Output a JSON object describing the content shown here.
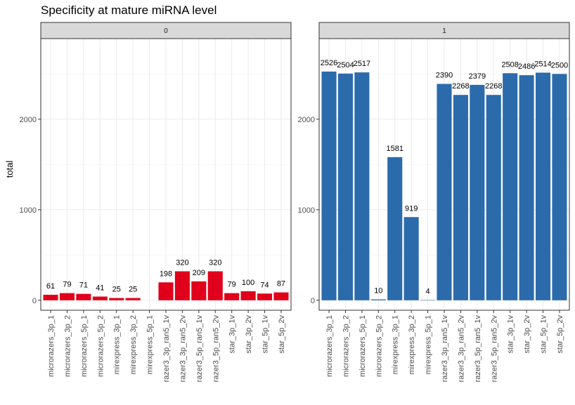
{
  "chart_data": {
    "type": "bar",
    "title": "Specificity at mature miRNA level",
    "ylabel": "total",
    "ylim": [
      -110,
      2890
    ],
    "yticks": [
      0,
      1000,
      2000
    ],
    "grid": true,
    "legend": "none",
    "categories": [
      "microrazers_3p_1",
      "microrazers_3p_2",
      "microrazers_5p_1",
      "microrazers_5p_2",
      "mirexpress_3p_1",
      "mirexpress_3p_2",
      "mirexpress_5p_1",
      "razer3_3p_ran5_1v",
      "razer3_3p_ran5_2v",
      "razer3_5p_ran5_1v",
      "razer3_5p_ran5_2v",
      "star_3p_1v",
      "star_3p_2v",
      "star_5p_1v",
      "star_5p_2v"
    ],
    "panels": [
      {
        "strip": "0",
        "color": "#E1001B",
        "values": [
          61,
          79,
          71,
          41,
          25,
          25,
          null,
          198,
          320,
          209,
          320,
          79,
          100,
          74,
          87
        ],
        "labels": [
          "61",
          "79",
          "71",
          "41",
          "25",
          "25",
          "",
          "198",
          "320",
          "209",
          "320",
          "79",
          "100",
          "74",
          "87"
        ]
      },
      {
        "strip": "1",
        "color": "#2B6BAC",
        "values": [
          2526,
          2504,
          2517,
          10,
          1581,
          919,
          4,
          2390,
          2268,
          2379,
          2268,
          2508,
          2486,
          2514,
          2500
        ],
        "labels": [
          "2526",
          "2504",
          "2517",
          "10",
          "1581",
          "919",
          "4",
          "2390",
          "2268",
          "2379",
          "2268",
          "2508",
          "2486",
          "2514",
          "2500"
        ]
      }
    ]
  }
}
